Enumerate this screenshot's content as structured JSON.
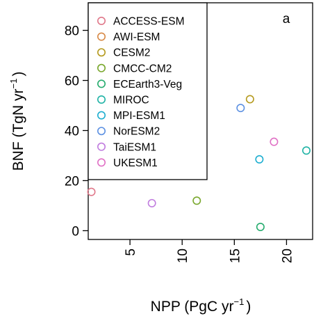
{
  "chart_data": {
    "type": "scatter",
    "panel_label": "a",
    "xlabel": {
      "main": "NPP (PgC  yr",
      "sup": "−1",
      "close": ")"
    },
    "ylabel": {
      "main": "BNF (TgN  yr",
      "sup": "−1",
      "close": ")"
    },
    "xlim": [
      1.0,
      22.5
    ],
    "ylim": [
      -3.5,
      91
    ],
    "x_ticks": [
      5,
      10,
      15,
      20
    ],
    "y_ticks": [
      0,
      20,
      40,
      60,
      80
    ],
    "grid": false,
    "legend_position": "top-left",
    "series": [
      {
        "name": "ACCESS-ESM",
        "color": "#e0788a",
        "x": 1.3,
        "y": 15.5
      },
      {
        "name": "AWI-ESM",
        "color": "#d88a47",
        "x": null,
        "y": null
      },
      {
        "name": "CESM2",
        "color": "#b59a1e",
        "x": 16.5,
        "y": 52.5
      },
      {
        "name": "CMCC-CM2",
        "color": "#7aa82e",
        "x": 11.4,
        "y": 12.0
      },
      {
        "name": "ECEarth3-Veg",
        "color": "#26ac6e",
        "x": 17.5,
        "y": 1.5
      },
      {
        "name": "MIROC",
        "color": "#20b3a6",
        "x": 21.9,
        "y": 32.0
      },
      {
        "name": "MPI-ESM1",
        "color": "#1daed0",
        "x": 17.4,
        "y": 28.5
      },
      {
        "name": "NorESM2",
        "color": "#5d91e2",
        "x": 15.6,
        "y": 49.0
      },
      {
        "name": "TaiESM1",
        "color": "#c17ddf",
        "x": 7.1,
        "y": 11.0
      },
      {
        "name": "UKESM1",
        "color": "#e070c5",
        "x": 18.8,
        "y": 35.5
      }
    ]
  }
}
